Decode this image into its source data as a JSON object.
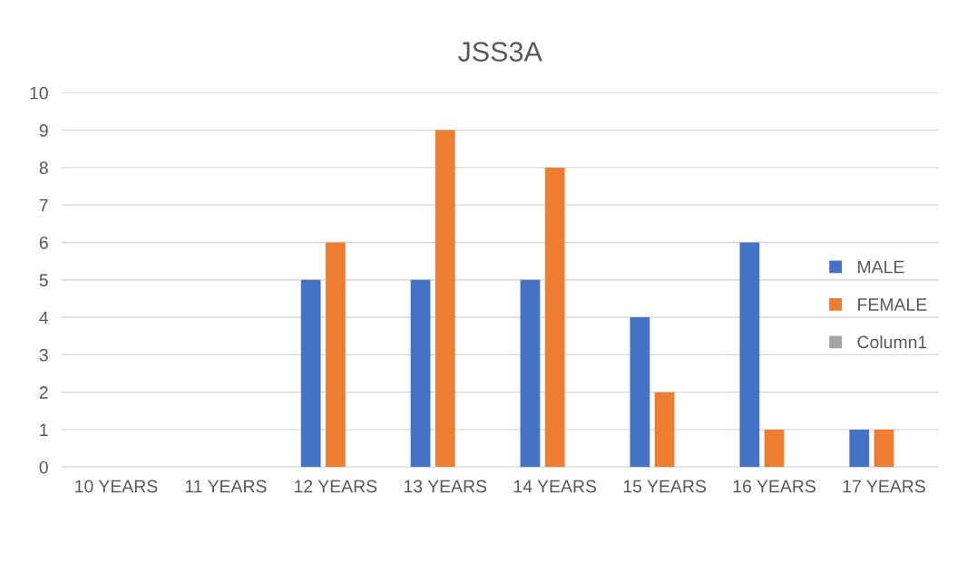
{
  "chart_data": {
    "type": "bar",
    "title": "JSS3A",
    "categories": [
      "10 YEARS",
      "11 YEARS",
      "12 YEARS",
      "13 YEARS",
      "14 YEARS",
      "15 YEARS",
      "16 YEARS",
      "17 YEARS"
    ],
    "series": [
      {
        "name": "MALE",
        "color": "#4472c4",
        "values": [
          null,
          null,
          5,
          5,
          5,
          4,
          6,
          1
        ]
      },
      {
        "name": "FEMALE",
        "color": "#ed7d31",
        "values": [
          null,
          null,
          6,
          9,
          8,
          2,
          1,
          1
        ]
      },
      {
        "name": "Column1",
        "color": "#a5a5a5",
        "values": [
          null,
          null,
          null,
          null,
          null,
          null,
          null,
          null
        ]
      }
    ],
    "ylim": [
      0,
      10
    ],
    "yticks": [
      0,
      1,
      2,
      3,
      4,
      5,
      6,
      7,
      8,
      9,
      10
    ],
    "grid": "y",
    "legend": "right"
  }
}
